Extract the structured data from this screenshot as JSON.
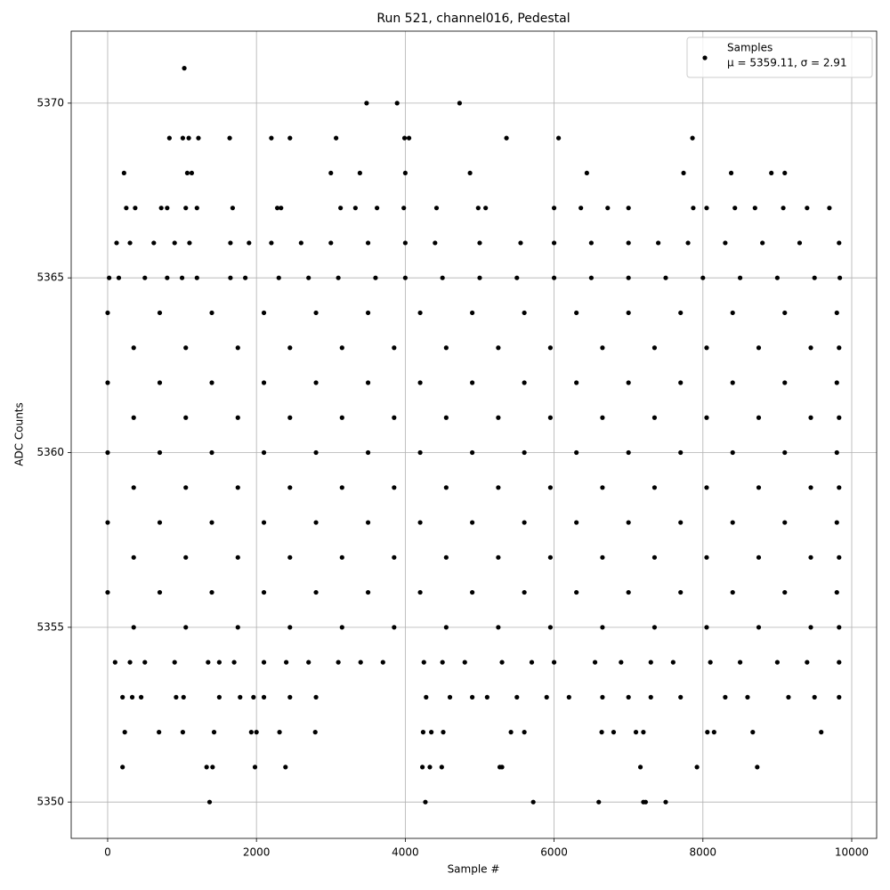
{
  "chart_data": {
    "type": "scatter",
    "title": "Run 521, channel016, Pedestal",
    "x_label": "Sample #",
    "y_label": "ADC Counts",
    "xlim": [
      -490,
      10335
    ],
    "ylim": [
      5348.96,
      5372.06
    ],
    "xticks": [
      0,
      2000,
      4000,
      6000,
      8000,
      10000
    ],
    "yticks": [
      5350,
      5355,
      5360,
      5365,
      5370
    ],
    "grid": true,
    "legend_loc": "upper right",
    "legend_note": "μ = 5359.11, σ = 2.91",
    "series": [
      {
        "name": "Samples",
        "color": "#000000",
        "x": [
          1030,
          3480,
          3890,
          4730,
          830,
          1010,
          1090,
          1220,
          1640,
          2200,
          2450,
          3070,
          3990,
          4050,
          5360,
          6060,
          7860,
          220,
          1070,
          1130,
          3000,
          3390,
          4000,
          4870,
          6440,
          7740,
          8380,
          8920,
          9100,
          250,
          370,
          720,
          800,
          1050,
          1200,
          1680,
          2280,
          2330,
          3130,
          3330,
          3620,
          3980,
          4420,
          4980,
          5080,
          6000,
          6360,
          6720,
          7000,
          7870,
          8050,
          8430,
          8700,
          9080,
          9400,
          9700,
          120,
          300,
          620,
          900,
          1100,
          1650,
          1900,
          2200,
          2600,
          3000,
          3500,
          4000,
          4400,
          5000,
          5550,
          6000,
          6500,
          7000,
          7400,
          7800,
          8300,
          8800,
          9300,
          9830,
          20,
          150,
          500,
          800,
          1000,
          1200,
          1650,
          1850,
          2300,
          2700,
          3100,
          3600,
          4000,
          4500,
          5000,
          5500,
          6000,
          6500,
          7000,
          7500,
          8000,
          8500,
          9000,
          9500,
          9840,
          0,
          700,
          1400,
          2100,
          2800,
          3500,
          4200,
          4900,
          5600,
          6300,
          7000,
          7700,
          8400,
          9100,
          9800,
          350,
          1050,
          1750,
          2450,
          3150,
          3850,
          4550,
          5250,
          5950,
          6650,
          7350,
          8050,
          8750,
          9450,
          9830,
          0,
          700,
          1400,
          2100,
          2800,
          3500,
          4200,
          4900,
          5600,
          6300,
          7000,
          7700,
          8400,
          9100,
          9800,
          350,
          1050,
          1750,
          2450,
          3150,
          3850,
          4550,
          5250,
          5950,
          6650,
          7350,
          8050,
          8750,
          9450,
          9830,
          0,
          700,
          1400,
          2100,
          2800,
          3500,
          4200,
          4900,
          5600,
          6300,
          7000,
          7700,
          8400,
          9100,
          9800,
          350,
          1050,
          1750,
          2450,
          3150,
          3850,
          4550,
          5250,
          5950,
          6650,
          7350,
          8050,
          8750,
          9450,
          9830,
          0,
          700,
          1400,
          2100,
          2800,
          3500,
          4200,
          4900,
          5600,
          6300,
          7000,
          7700,
          8400,
          9100,
          9800,
          350,
          1050,
          1750,
          2450,
          3150,
          3850,
          4550,
          5250,
          5950,
          6650,
          7350,
          8050,
          8750,
          9450,
          9830,
          0,
          700,
          1400,
          2100,
          2800,
          3500,
          4200,
          4900,
          5600,
          6300,
          7000,
          7700,
          8400,
          9100,
          9800,
          350,
          1050,
          1750,
          2450,
          3150,
          3850,
          4550,
          5250,
          5950,
          6650,
          7350,
          8050,
          8750,
          9450,
          9830,
          100,
          300,
          500,
          900,
          1350,
          1500,
          1700,
          2100,
          2400,
          2700,
          3100,
          3400,
          3700,
          4250,
          4500,
          4800,
          5300,
          5700,
          6000,
          6550,
          6900,
          7300,
          7600,
          8100,
          8500,
          9000,
          9400,
          9830,
          200,
          330,
          450,
          920,
          1020,
          1500,
          1780,
          1960,
          2100,
          2450,
          2800,
          4280,
          4600,
          4900,
          5100,
          5500,
          5900,
          6200,
          6650,
          7000,
          7300,
          7700,
          8300,
          8600,
          9150,
          9500,
          9830,
          230,
          690,
          1010,
          1430,
          1930,
          2000,
          2310,
          2790,
          4240,
          4350,
          4510,
          5420,
          5600,
          6640,
          6800,
          7100,
          7200,
          8060,
          8150,
          8670,
          9590,
          200,
          1330,
          1410,
          1980,
          2390,
          4230,
          4330,
          4490,
          5270,
          5300,
          7160,
          7920,
          8730,
          1370,
          4270,
          5720,
          6600,
          7200,
          7230,
          7500
        ],
        "values": [
          5371,
          5370,
          5370,
          5370,
          5369,
          5369,
          5369,
          5369,
          5369,
          5369,
          5369,
          5369,
          5369,
          5369,
          5369,
          5369,
          5369,
          5368,
          5368,
          5368,
          5368,
          5368,
          5368,
          5368,
          5368,
          5368,
          5368,
          5368,
          5368,
          5367,
          5367,
          5367,
          5367,
          5367,
          5367,
          5367,
          5367,
          5367,
          5367,
          5367,
          5367,
          5367,
          5367,
          5367,
          5367,
          5367,
          5367,
          5367,
          5367,
          5367,
          5367,
          5367,
          5367,
          5367,
          5367,
          5367,
          5366,
          5366,
          5366,
          5366,
          5366,
          5366,
          5366,
          5366,
          5366,
          5366,
          5366,
          5366,
          5366,
          5366,
          5366,
          5366,
          5366,
          5366,
          5366,
          5366,
          5366,
          5366,
          5366,
          5366,
          5365,
          5365,
          5365,
          5365,
          5365,
          5365,
          5365,
          5365,
          5365,
          5365,
          5365,
          5365,
          5365,
          5365,
          5365,
          5365,
          5365,
          5365,
          5365,
          5365,
          5365,
          5365,
          5365,
          5365,
          5365,
          5364,
          5364,
          5364,
          5364,
          5364,
          5364,
          5364,
          5364,
          5364,
          5364,
          5364,
          5364,
          5364,
          5364,
          5364,
          5363,
          5363,
          5363,
          5363,
          5363,
          5363,
          5363,
          5363,
          5363,
          5363,
          5363,
          5363,
          5363,
          5363,
          5363,
          5362,
          5362,
          5362,
          5362,
          5362,
          5362,
          5362,
          5362,
          5362,
          5362,
          5362,
          5362,
          5362,
          5362,
          5362,
          5361,
          5361,
          5361,
          5361,
          5361,
          5361,
          5361,
          5361,
          5361,
          5361,
          5361,
          5361,
          5361,
          5361,
          5361,
          5360,
          5360,
          5360,
          5360,
          5360,
          5360,
          5360,
          5360,
          5360,
          5360,
          5360,
          5360,
          5360,
          5360,
          5360,
          5359,
          5359,
          5359,
          5359,
          5359,
          5359,
          5359,
          5359,
          5359,
          5359,
          5359,
          5359,
          5359,
          5359,
          5359,
          5358,
          5358,
          5358,
          5358,
          5358,
          5358,
          5358,
          5358,
          5358,
          5358,
          5358,
          5358,
          5358,
          5358,
          5358,
          5357,
          5357,
          5357,
          5357,
          5357,
          5357,
          5357,
          5357,
          5357,
          5357,
          5357,
          5357,
          5357,
          5357,
          5357,
          5356,
          5356,
          5356,
          5356,
          5356,
          5356,
          5356,
          5356,
          5356,
          5356,
          5356,
          5356,
          5356,
          5356,
          5356,
          5355,
          5355,
          5355,
          5355,
          5355,
          5355,
          5355,
          5355,
          5355,
          5355,
          5355,
          5355,
          5355,
          5355,
          5355,
          5354,
          5354,
          5354,
          5354,
          5354,
          5354,
          5354,
          5354,
          5354,
          5354,
          5354,
          5354,
          5354,
          5354,
          5354,
          5354,
          5354,
          5354,
          5354,
          5354,
          5354,
          5354,
          5354,
          5354,
          5354,
          5354,
          5354,
          5354,
          5353,
          5353,
          5353,
          5353,
          5353,
          5353,
          5353,
          5353,
          5353,
          5353,
          5353,
          5353,
          5353,
          5353,
          5353,
          5353,
          5353,
          5353,
          5353,
          5353,
          5353,
          5353,
          5353,
          5353,
          5353,
          5353,
          5353,
          5352,
          5352,
          5352,
          5352,
          5352,
          5352,
          5352,
          5352,
          5352,
          5352,
          5352,
          5352,
          5352,
          5352,
          5352,
          5352,
          5352,
          5352,
          5352,
          5352,
          5352,
          5351,
          5351,
          5351,
          5351,
          5351,
          5351,
          5351,
          5351,
          5351,
          5351,
          5351,
          5351,
          5351,
          5350,
          5350,
          5350,
          5350,
          5350,
          5350,
          5350
        ]
      }
    ]
  }
}
